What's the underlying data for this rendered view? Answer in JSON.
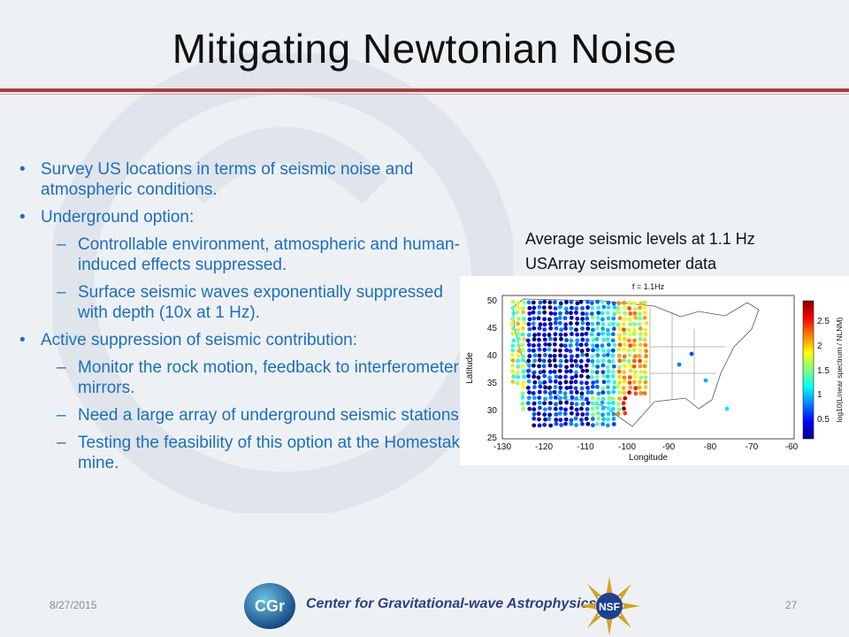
{
  "slide": {
    "title": "Mitigating Newtonian Noise",
    "bullets": [
      {
        "level": 1,
        "text": "Survey US locations in terms of seismic noise and atmospheric conditions."
      },
      {
        "level": 1,
        "text": "Underground option:"
      },
      {
        "level": 2,
        "text": "Controllable environment, atmospheric and human-induced effects suppressed."
      },
      {
        "level": 2,
        "text": "Surface seismic waves exponentially suppressed with depth (10x at 1 Hz)."
      },
      {
        "level": 1,
        "text": "Active suppression of seismic contribution:"
      },
      {
        "level": 2,
        "text": "Monitor the rock motion, feedback to interferometer mirrors."
      },
      {
        "level": 2,
        "text": "Need a large array of underground seismic stations."
      },
      {
        "level": 2,
        "text": "Testing the feasibility of this option at the Homestake mine."
      }
    ],
    "caption_line1": "Average seismic levels at 1.1 Hz",
    "caption_line2": "USArray seismometer data"
  },
  "map": {
    "title": "f = 1.1Hz",
    "xlabel": "Longitude",
    "ylabel": "Latitude",
    "x_ticks": [
      "-130",
      "-120",
      "-110",
      "-100",
      "-90",
      "-80",
      "-70",
      "-60"
    ],
    "y_ticks": [
      "50",
      "45",
      "40",
      "35",
      "30",
      "25"
    ],
    "colorbar_label": "log10(Linear spectrum / NLNM)",
    "colorbar_ticks": [
      "2.5",
      "2",
      "1.5",
      "1",
      "0.5"
    ],
    "colorbar_range": [
      0.0,
      2.8
    ]
  },
  "footer": {
    "date": "8/27/2015",
    "center_text": "Center for Gravitational-wave Astrophysics",
    "page_number": "27",
    "left_logo_text": "CGr",
    "right_logo_text": "NSF"
  },
  "colors": {
    "bullet_text": "#1a6fbf",
    "title_rule": "#b23a3a",
    "footer_text": "#2a3e88"
  }
}
